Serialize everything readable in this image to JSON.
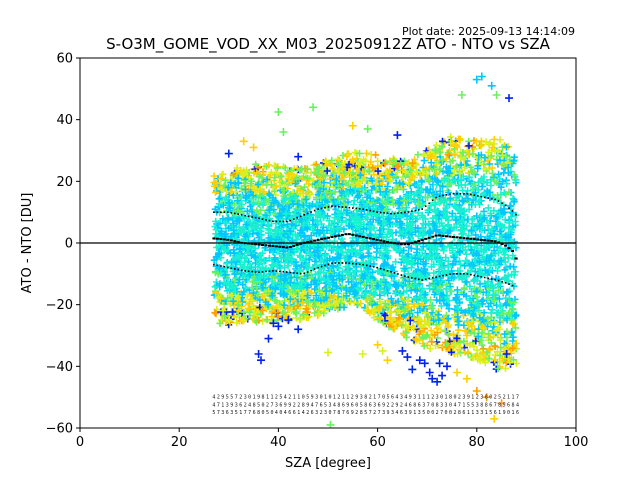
{
  "plot_date": "Plot date: 2025-09-13 14:14:09",
  "colors": {
    "levels": [
      "#0022ee",
      "#00c8ff",
      "#18f0d0",
      "#6cf060",
      "#d8f020",
      "#ffd000",
      "#ffa000"
    ]
  },
  "chart_data": {
    "type": "scatter",
    "title": "S-O3M_GOME_VOD_XX_M03_20250912Z ATO - NTO vs SZA",
    "xlabel": "SZA [degree]",
    "ylabel": "ATO - NTO [DU]",
    "xlim": [
      0,
      100
    ],
    "ylim": [
      -60,
      60
    ],
    "xticks": [
      0,
      20,
      40,
      60,
      80,
      100
    ],
    "yticks": [
      -60,
      -40,
      -20,
      0,
      20,
      40,
      60
    ],
    "zero_line": 0,
    "grid": false,
    "scatter_x_range": [
      27,
      88
    ],
    "envelope": {
      "upper": [
        [
          27,
          22
        ],
        [
          35,
          26
        ],
        [
          45,
          24
        ],
        [
          55,
          30
        ],
        [
          65,
          27
        ],
        [
          70,
          30
        ],
        [
          75,
          35
        ],
        [
          80,
          33
        ],
        [
          85,
          34
        ],
        [
          88,
          28
        ]
      ],
      "lower": [
        [
          27,
          -27
        ],
        [
          35,
          -26
        ],
        [
          45,
          -25
        ],
        [
          55,
          -20
        ],
        [
          60,
          -25
        ],
        [
          65,
          -30
        ],
        [
          70,
          -34
        ],
        [
          75,
          -36
        ],
        [
          80,
          -38
        ],
        [
          85,
          -42
        ],
        [
          88,
          -40
        ]
      ]
    },
    "series": [
      {
        "name": "",
        "style": "mean",
        "x": [
          27,
          30,
          33,
          36,
          39,
          42,
          45,
          48,
          51,
          54,
          57,
          60,
          63,
          66,
          69,
          72,
          75,
          78,
          81,
          84,
          86,
          87.5,
          88.5
        ],
        "y": [
          1.5,
          1.0,
          0.0,
          -0.5,
          -1.0,
          -1.5,
          0.0,
          1.0,
          2.0,
          3.0,
          2.0,
          1.0,
          0.0,
          -0.5,
          1.0,
          2.5,
          2.0,
          1.5,
          1.0,
          0.5,
          -1.0,
          -3.0,
          -8.0
        ]
      },
      {
        "name": "",
        "style": "upper",
        "x": [
          27,
          30,
          33,
          36,
          39,
          42,
          45,
          48,
          51,
          54,
          57,
          60,
          63,
          66,
          69,
          72,
          75,
          78,
          81,
          84,
          86,
          87.5,
          88.5
        ],
        "y": [
          10,
          10,
          9,
          8,
          7,
          7,
          9,
          11,
          12,
          11.5,
          11,
          10,
          9.5,
          10,
          11,
          15,
          16,
          16,
          15,
          14,
          12,
          10,
          8
        ]
      },
      {
        "name": "",
        "style": "lower",
        "x": [
          27,
          30,
          33,
          36,
          39,
          42,
          45,
          48,
          51,
          54,
          57,
          60,
          63,
          66,
          69,
          72,
          75,
          78,
          81,
          84,
          86,
          87.5
        ],
        "y": [
          -7,
          -8,
          -9,
          -9.5,
          -9,
          -9.5,
          -10,
          -8,
          -6.5,
          -6.5,
          -7,
          -8,
          -9.5,
          -11,
          -12,
          -11,
          -10,
          -10,
          -11,
          -12,
          -13,
          -14
        ]
      }
    ],
    "outliers": [
      {
        "x": 40,
        "y": 42.5,
        "level": 3
      },
      {
        "x": 47,
        "y": 44,
        "level": 3
      },
      {
        "x": 41,
        "y": 36,
        "level": 3
      },
      {
        "x": 50.5,
        "y": -59,
        "level": 3
      },
      {
        "x": 50,
        "y": -35.5,
        "level": 4
      },
      {
        "x": 81,
        "y": 54,
        "level": 1
      },
      {
        "x": 80,
        "y": 53,
        "level": 1
      },
      {
        "x": 83,
        "y": 51,
        "level": 1
      },
      {
        "x": 84,
        "y": 48,
        "level": 3
      },
      {
        "x": 77,
        "y": 48,
        "level": 3
      },
      {
        "x": 86.5,
        "y": 47,
        "level": 0
      },
      {
        "x": 64,
        "y": 35,
        "level": 0
      },
      {
        "x": 30,
        "y": 29,
        "level": 0
      },
      {
        "x": 33,
        "y": 33,
        "level": 5
      },
      {
        "x": 36,
        "y": -36,
        "level": 0
      },
      {
        "x": 36.5,
        "y": -38,
        "level": 0
      },
      {
        "x": 38,
        "y": -31,
        "level": 0
      },
      {
        "x": 39,
        "y": -26,
        "level": 0
      },
      {
        "x": 40,
        "y": -27,
        "level": 0
      },
      {
        "x": 42,
        "y": -25,
        "level": 0
      },
      {
        "x": 44,
        "y": -28,
        "level": 0
      },
      {
        "x": 65,
        "y": -35,
        "level": 0
      },
      {
        "x": 66,
        "y": -37,
        "level": 0
      },
      {
        "x": 67,
        "y": -41,
        "level": 0
      },
      {
        "x": 68.5,
        "y": -38,
        "level": 0
      },
      {
        "x": 69.5,
        "y": -39,
        "level": 0
      },
      {
        "x": 70.5,
        "y": -42,
        "level": 0
      },
      {
        "x": 71,
        "y": -44,
        "level": 0
      },
      {
        "x": 72,
        "y": -45,
        "level": 0
      },
      {
        "x": 73,
        "y": -43,
        "level": 0
      },
      {
        "x": 72.5,
        "y": -39,
        "level": 0
      },
      {
        "x": 74,
        "y": -40,
        "level": 0
      },
      {
        "x": 76,
        "y": -42,
        "level": 5
      },
      {
        "x": 78,
        "y": -44,
        "level": 5
      },
      {
        "x": 80,
        "y": -48,
        "level": 6
      },
      {
        "x": 82,
        "y": -50,
        "level": 6
      },
      {
        "x": 83.5,
        "y": -57,
        "level": 5
      },
      {
        "x": 85,
        "y": -52,
        "level": 6
      },
      {
        "x": 62,
        "y": -38,
        "level": 5
      },
      {
        "x": 57,
        "y": -36,
        "level": 4
      },
      {
        "x": 86,
        "y": -36,
        "level": 0
      },
      {
        "x": 78,
        "y": -30,
        "level": 5
      },
      {
        "x": 60,
        "y": -33,
        "level": 5
      },
      {
        "x": 61,
        "y": -35,
        "level": 4
      },
      {
        "x": 55,
        "y": 38,
        "level": 5
      },
      {
        "x": 58,
        "y": 37,
        "level": 3
      },
      {
        "x": 35,
        "y": 31,
        "level": 5
      },
      {
        "x": 44,
        "y": 28,
        "level": 0
      }
    ]
  }
}
